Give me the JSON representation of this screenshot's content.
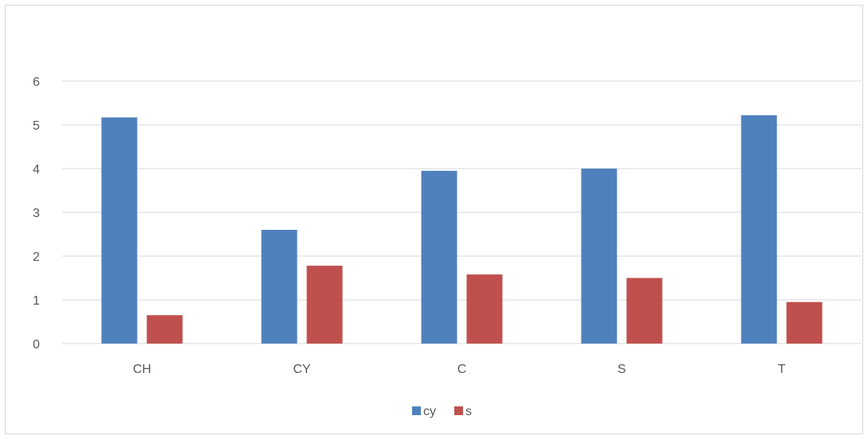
{
  "chart_data": {
    "type": "bar",
    "categories": [
      "CH",
      "CY",
      "C",
      "S",
      "T"
    ],
    "series": [
      {
        "name": "cy",
        "values": [
          5.17,
          2.6,
          3.95,
          4.0,
          5.22
        ],
        "color": "#4F81BD"
      },
      {
        "name": "s",
        "values": [
          0.65,
          1.78,
          1.58,
          1.5,
          0.95
        ],
        "color": "#C0504D"
      }
    ],
    "ylim": [
      0,
      6
    ],
    "yticks": [
      "0",
      "1",
      "2",
      "3",
      "4",
      "5",
      "6"
    ],
    "grid": true,
    "legend_position": "bottom"
  }
}
